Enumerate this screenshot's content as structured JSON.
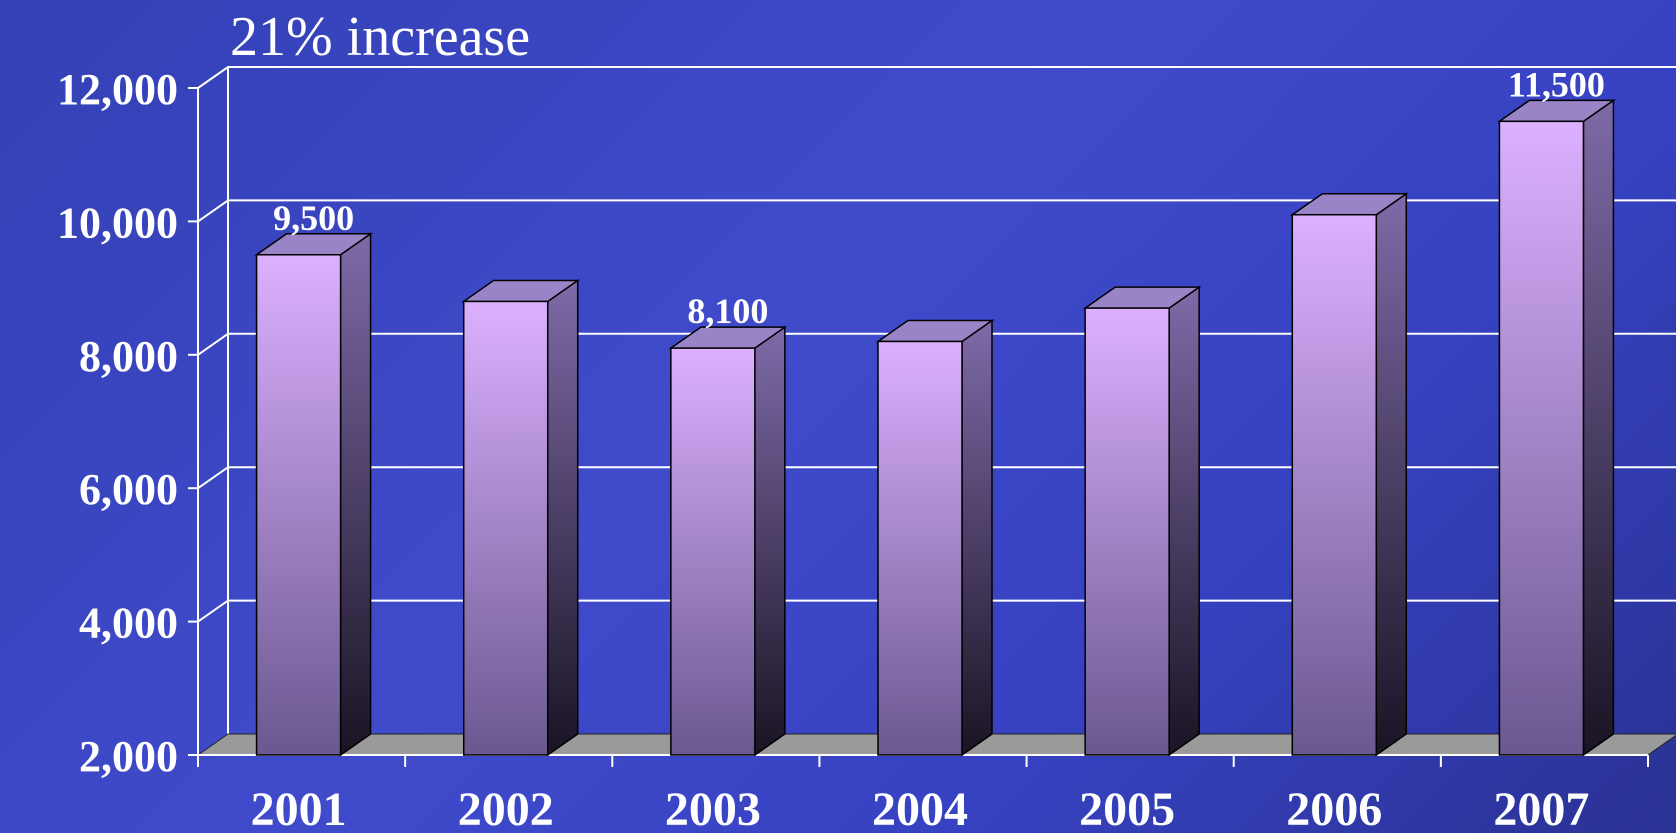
{
  "chart_data": {
    "type": "bar",
    "title": "21% increase",
    "categories": [
      "2001",
      "2002",
      "2003",
      "2004",
      "2005",
      "2006",
      "2007"
    ],
    "values": [
      9500,
      8800,
      8100,
      8200,
      8700,
      10100,
      11500
    ],
    "data_labels": [
      "9,500",
      "",
      "8,100",
      "",
      "",
      "",
      "11,500"
    ],
    "ylim": [
      2000,
      12000
    ],
    "yticks": [
      2000,
      4000,
      6000,
      8000,
      10000,
      12000
    ],
    "ytick_labels": [
      "2,000",
      "4,000",
      "6,000",
      "8,000",
      "10,000",
      "12,000"
    ],
    "grid": true,
    "three_d": true,
    "colors": {
      "bar_front_top": "#dcb0ff",
      "bar_front_bottom": "#6a5890",
      "bar_side_top": "#7e6aa8",
      "bar_side_bottom": "#1a1424",
      "bar_top": "#9a84c8",
      "floor": "#9a9a9a",
      "grid": "#ffffff",
      "text": "#ffffff"
    }
  }
}
